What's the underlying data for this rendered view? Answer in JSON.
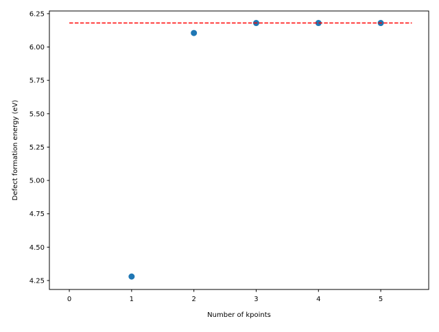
{
  "chart_data": {
    "type": "scatter",
    "title": "",
    "xlabel": "Number of kpoints",
    "ylabel": "Defect formation energy (eV)",
    "xlim": [
      -0.32,
      5.77
    ],
    "ylim": [
      4.183,
      6.27
    ],
    "xticks": [
      0,
      1,
      2,
      3,
      4,
      5
    ],
    "xtick_labels": [
      "0",
      "1",
      "2",
      "3",
      "4",
      "5"
    ],
    "yticks": [
      4.25,
      4.5,
      4.75,
      5.0,
      5.25,
      5.5,
      5.75,
      6.0,
      6.25
    ],
    "ytick_labels": [
      "4.25",
      "4.50",
      "4.75",
      "5.00",
      "5.25",
      "5.50",
      "5.75",
      "6.00",
      "6.25"
    ],
    "grid": false,
    "series": [
      {
        "name": "data",
        "kind": "scatter",
        "color": "#1f77b4",
        "x": [
          1,
          2,
          3,
          4,
          5
        ],
        "y": [
          4.28,
          6.105,
          6.18,
          6.18,
          6.18
        ]
      },
      {
        "name": "converged",
        "kind": "dashed-line",
        "color": "#ff0000",
        "x": [
          0,
          5.5
        ],
        "y": [
          6.18,
          6.18
        ]
      }
    ]
  }
}
